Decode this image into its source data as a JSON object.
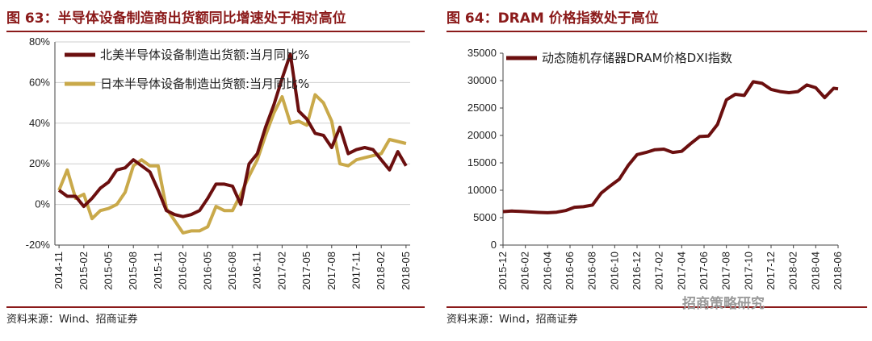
{
  "left": {
    "title": "图 63：半导体设备制造商出货额同比增速处于相对高位",
    "source": "资料来源：Wind、招商证券",
    "chart_data": {
      "type": "line",
      "ylim": [
        -20,
        80
      ],
      "yticks": [
        "80%",
        "60%",
        "40%",
        "20%",
        "0%",
        "-20%"
      ],
      "ytick_values": [
        80,
        60,
        40,
        20,
        0,
        -20
      ],
      "categories": [
        "2014-11",
        "2014-12",
        "2015-01",
        "2015-02",
        "2015-03",
        "2015-04",
        "2015-05",
        "2015-06",
        "2015-07",
        "2015-08",
        "2015-09",
        "2015-10",
        "2015-11",
        "2015-12",
        "2016-01",
        "2016-02",
        "2016-03",
        "2016-04",
        "2016-05",
        "2016-06",
        "2016-07",
        "2016-08",
        "2016-09",
        "2016-10",
        "2016-11",
        "2016-12",
        "2017-01",
        "2017-02",
        "2017-03",
        "2017-04",
        "2017-05",
        "2017-06",
        "2017-07",
        "2017-08",
        "2017-09",
        "2017-10",
        "2017-11",
        "2017-12",
        "2018-01",
        "2018-02",
        "2018-03",
        "2018-04",
        "2018-05"
      ],
      "xtick_labels": [
        "2014-11",
        "2015-02",
        "2015-05",
        "2015-08",
        "2015-11",
        "2016-02",
        "2016-05",
        "2016-08",
        "2016-11",
        "2017-02",
        "2017-05",
        "2017-08",
        "2017-11",
        "2018-02",
        "2018-05"
      ],
      "series": [
        {
          "name": "北美半导体设备制造出货额:当月同比%",
          "color": "#6b0f0f",
          "values": [
            7,
            4,
            4,
            -1,
            3,
            8,
            11,
            17,
            18,
            22,
            19,
            16,
            7,
            -3,
            -5,
            -6,
            -5,
            -3,
            3,
            10,
            10,
            9,
            0,
            20,
            25,
            38,
            49,
            62,
            74,
            46,
            42,
            35,
            34,
            28,
            38,
            25,
            27,
            28,
            27,
            22,
            17,
            26,
            19
          ]
        },
        {
          "name": "日本半导体设备制造出货额:当月同比%",
          "color": "#c9a94a",
          "values": [
            7,
            17,
            3,
            5,
            -7,
            -3,
            -2,
            0,
            6,
            19,
            22,
            19,
            19,
            -2,
            -8,
            -14,
            -13,
            -13,
            -11,
            -1,
            -3,
            -3,
            5,
            14,
            22,
            34,
            45,
            53,
            40,
            41,
            39,
            54,
            50,
            41,
            20,
            19,
            22,
            23,
            24,
            25,
            32,
            31,
            30
          ]
        }
      ]
    }
  },
  "right": {
    "title": "图 64：DRAM 价格指数处于高位",
    "source": "资料来源：Wind，招商证券",
    "watermark": "招商策略研究",
    "chart_data": {
      "type": "line",
      "ylim": [
        0,
        35000
      ],
      "yticks": [
        "35000",
        "30000",
        "25000",
        "20000",
        "15000",
        "10000",
        "5000",
        "0"
      ],
      "ytick_values": [
        35000,
        30000,
        25000,
        20000,
        15000,
        10000,
        5000,
        0
      ],
      "xtick_labels": [
        "2015-12",
        "2016-02",
        "2016-04",
        "2016-06",
        "2016-08",
        "2016-10",
        "2016-12",
        "2017-02",
        "2017-04",
        "2017-06",
        "2017-08",
        "2017-10",
        "2017-12",
        "2018-02",
        "2018-04",
        "2018-06"
      ],
      "series": [
        {
          "name": "动态随机存储器DRAM价格DXI指数",
          "color": "#6b0f0f",
          "x": [
            0,
            0.4,
            0.8,
            1.2,
            1.6,
            2.0,
            2.4,
            2.8,
            3.2,
            3.6,
            4.0,
            4.4,
            4.8,
            5.2,
            5.6,
            6.0,
            6.4,
            6.8,
            7.2,
            7.6,
            8.0,
            8.4,
            8.8,
            9.2,
            9.6,
            10.0,
            10.4,
            10.8,
            11.2,
            11.6,
            12.0,
            12.4,
            12.8,
            13.2,
            13.6,
            14.0,
            14.4,
            14.8,
            15.0
          ],
          "values": [
            6100,
            6200,
            6150,
            6050,
            5950,
            5900,
            6000,
            6300,
            6900,
            7000,
            7300,
            9500,
            10800,
            12000,
            14500,
            16500,
            16900,
            17400,
            17500,
            16900,
            17100,
            18500,
            19800,
            19900,
            22000,
            26500,
            27500,
            27300,
            29800,
            29500,
            28400,
            28000,
            27800,
            28000,
            29200,
            28700,
            26900,
            28600,
            28500
          ]
        }
      ]
    }
  }
}
